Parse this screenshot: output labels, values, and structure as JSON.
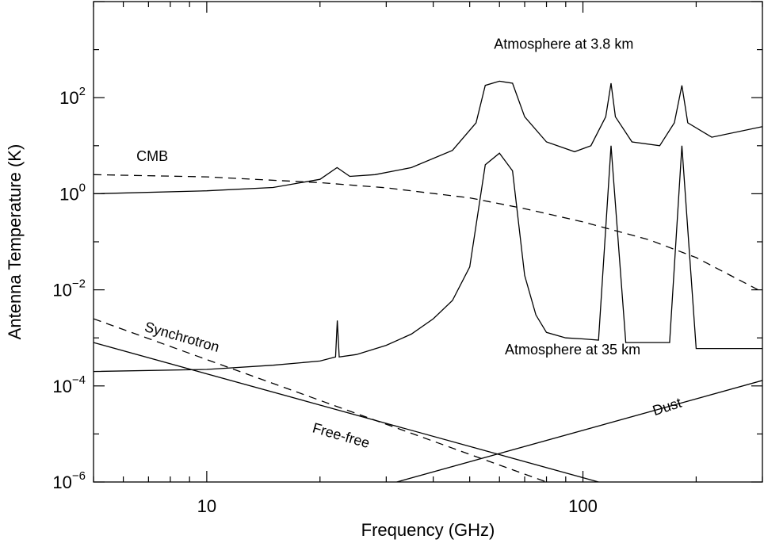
{
  "chart_data": {
    "type": "line",
    "title": "",
    "xlabel": "Frequency (GHz)",
    "ylabel": "Antenna Temperature (K)",
    "x_scale": "log",
    "y_scale": "log",
    "xlim": [
      5,
      300
    ],
    "ylim": [
      1e-06,
      10000
    ],
    "x_ticks": [
      {
        "value": 10,
        "label": "10"
      },
      {
        "value": 100,
        "label": "100"
      }
    ],
    "y_ticks": [
      {
        "value": 1e-06,
        "base": "10",
        "exp": "−6"
      },
      {
        "value": 0.0001,
        "base": "10",
        "exp": "−4"
      },
      {
        "value": 0.01,
        "base": "10",
        "exp": "−2"
      },
      {
        "value": 1,
        "base": "10",
        "exp": "0"
      },
      {
        "value": 100,
        "base": "10",
        "exp": "2"
      }
    ],
    "grid": false,
    "series": [
      {
        "name": "CMB",
        "style": "dashed",
        "x": [
          5,
          10,
          20,
          30,
          50,
          70,
          100,
          150,
          200,
          300
        ],
        "y": [
          2.5,
          2.25,
          1.7,
          1.33,
          0.82,
          0.49,
          0.26,
          0.11,
          0.047,
          0.009
        ]
      },
      {
        "name": "Synchrotron",
        "style": "dashed",
        "x": [
          5,
          80
        ],
        "y": [
          0.0025,
          1e-06
        ]
      },
      {
        "name": "Free-free",
        "style": "solid",
        "x": [
          5,
          110
        ],
        "y": [
          0.0008,
          1e-06
        ]
      },
      {
        "name": "Dust",
        "style": "solid",
        "x": [
          32,
          300
        ],
        "y": [
          1e-06,
          0.00013
        ]
      },
      {
        "name": "Atmosphere at 3.8 km",
        "style": "solid",
        "x": [
          5,
          10,
          15,
          20,
          22.2,
          24,
          28,
          35,
          45,
          52,
          55,
          60,
          65,
          70,
          80,
          95,
          105,
          115,
          118.75,
          122,
          135,
          160,
          175,
          183.3,
          190,
          220,
          300
        ],
        "y": [
          1.0,
          1.15,
          1.35,
          2.0,
          3.5,
          2.3,
          2.5,
          3.5,
          8,
          30,
          180,
          220,
          200,
          40,
          12,
          7.5,
          10,
          40,
          200,
          40,
          12,
          10,
          30,
          180,
          30,
          15,
          25
        ]
      },
      {
        "name": "Atmosphere at 35 km",
        "style": "solid",
        "x": [
          5,
          10,
          15,
          20,
          22,
          22.235,
          22.5,
          25,
          30,
          35,
          40,
          45,
          50,
          55,
          60,
          65,
          70,
          75,
          80,
          90,
          100,
          110,
          118.75,
          130,
          150,
          170,
          183.3,
          200,
          220,
          250,
          300
        ],
        "y": [
          0.0002,
          0.00022,
          0.00027,
          0.00033,
          0.0004,
          0.0023,
          0.0004,
          0.00045,
          0.0007,
          0.0012,
          0.0025,
          0.006,
          0.03,
          4,
          7,
          3,
          0.02,
          0.003,
          0.0013,
          0.001,
          0.00095,
          0.0009,
          10,
          0.0008,
          0.0008,
          0.0008,
          10,
          0.0006,
          0.0006,
          0.0006,
          0.0006
        ]
      }
    ],
    "annotations": [
      {
        "text": "Atmosphere at 3.8 km",
        "x": 58,
        "y": 1050
      },
      {
        "text": "CMB",
        "x": 6.5,
        "y": 4.8
      },
      {
        "text": "Synchrotron",
        "x": 6.8,
        "y": 0.0014,
        "angle": 16
      },
      {
        "text": "Atmosphere at 35 km",
        "x": 62,
        "y": 0.00045
      },
      {
        "text": "Free-free",
        "x": 19,
        "y": 1.1e-05,
        "angle": 16
      },
      {
        "text": "Dust",
        "x": 155,
        "y": 2.4e-05,
        "angle": -18
      }
    ]
  }
}
